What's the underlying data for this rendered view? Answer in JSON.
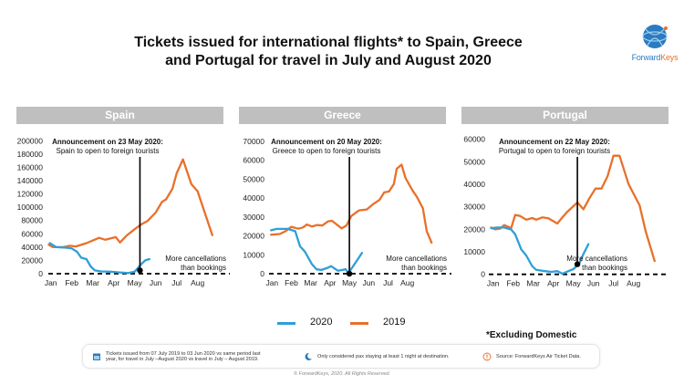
{
  "title": {
    "line1": "Tickets issued for international flights* to Spain, Greece",
    "line2": "and Portugal for travel in July and August 2020"
  },
  "logo": {
    "icon": "globe-icon",
    "text_part1": "Forward",
    "text_part2": "Keys"
  },
  "colors": {
    "series_2020": "#2e9fd8",
    "series_2019": "#e8702a",
    "panel_header_bg": "#bfbfbf"
  },
  "legend": [
    {
      "label": "2020",
      "color": "#2e9fd8"
    },
    {
      "label": "2019",
      "color": "#e8702a"
    }
  ],
  "footnote": "*Excluding Domestic",
  "notes": [
    {
      "icon": "calendar-icon",
      "line1": "Tickets issued from 07 July 2019 to 03 Jun 2020 vs same period last",
      "line2": "year, for travel in July –August 2020 vs travel in July – August 2019."
    },
    {
      "icon": "moon-icon",
      "line1": "Only considered pax staying at least 1 night at destination.",
      "line2": ""
    },
    {
      "icon": "warning-icon",
      "line1": "Source: ForwardKeys Air Ticket Data.",
      "line2": ""
    }
  ],
  "copyright": "© ForwardKeys, 2020. All Rights Reserved.",
  "chart_data": [
    {
      "type": "line",
      "title": "Spain",
      "xlabel": "",
      "ylabel": "",
      "x_tick_labels": [
        "Jan",
        "Feb",
        "Mar",
        "Apr",
        "May",
        "Jun",
        "Jul",
        "Aug"
      ],
      "x_unit": "months since Jan (0 = Jan)",
      "xlim": [
        -0.1,
        8.3
      ],
      "ylim": [
        0,
        200000
      ],
      "y_ticks": [
        0,
        20000,
        40000,
        60000,
        80000,
        100000,
        120000,
        140000,
        160000,
        180000,
        200000
      ],
      "grid": false,
      "zero_line": "dashed",
      "annotation": {
        "title": "Announcement on 23 May 2020:",
        "text": "Spain to open to foreign tourists",
        "x": 4.25,
        "marker_value": 5000
      },
      "note": [
        "More cancellations",
        "than bookings"
      ],
      "series": [
        {
          "name": "2020",
          "x": [
            -0.05,
            0.25,
            0.8,
            1.0,
            1.25,
            1.45,
            1.7,
            1.9,
            2.1,
            2.4,
            2.85,
            3.2,
            3.7,
            4.0,
            4.3,
            4.5,
            4.7
          ],
          "values": [
            46000,
            40000,
            39000,
            38000,
            33000,
            24000,
            22000,
            11000,
            5000,
            3500,
            3000,
            2000,
            1000,
            3000,
            14000,
            20000,
            22000
          ]
        },
        {
          "name": "2019",
          "x": [
            -0.1,
            0.1,
            0.6,
            0.9,
            1.2,
            1.7,
            2.3,
            2.6,
            3.1,
            3.3,
            3.6,
            4.0,
            4.3,
            4.6,
            5.0,
            5.3,
            5.5,
            5.8,
            6.0,
            6.3,
            6.7,
            7.0,
            7.2,
            7.7
          ],
          "values": [
            43500,
            40000,
            40000,
            42000,
            41000,
            46000,
            54000,
            51000,
            55000,
            47000,
            57000,
            67000,
            74000,
            79000,
            92000,
            108000,
            112000,
            128000,
            151000,
            172000,
            135000,
            124000,
            105000,
            58000
          ]
        }
      ]
    },
    {
      "type": "line",
      "title": "Greece",
      "xlabel": "",
      "ylabel": "",
      "x_tick_labels": [
        "Jan",
        "Feb",
        "Mar",
        "Apr",
        "May",
        "Jun",
        "Jul",
        "Aug"
      ],
      "x_unit": "months since Jan (0 = Jan)",
      "xlim": [
        -0.1,
        8.3
      ],
      "ylim": [
        0,
        70000
      ],
      "y_ticks": [
        0,
        10000,
        20000,
        30000,
        40000,
        50000,
        60000,
        70000
      ],
      "grid": false,
      "zero_line": "dashed",
      "annotation": {
        "title": "Announcement on 20 May 2020:",
        "text": "Greece to open to foreign tourists",
        "x": 4.0,
        "marker_value": 0
      },
      "note": [
        "More cancellations",
        "than bookings"
      ],
      "series": [
        {
          "name": "2020",
          "x": [
            -0.05,
            0.25,
            0.8,
            1.2,
            1.45,
            1.7,
            2.05,
            2.3,
            2.55,
            2.9,
            3.05,
            3.4,
            3.65,
            3.8,
            3.95,
            4.3,
            4.65
          ],
          "values": [
            23000,
            23700,
            23700,
            22500,
            14500,
            11700,
            5200,
            2300,
            2000,
            3200,
            4000,
            1600,
            2000,
            2400,
            300,
            5600,
            11000
          ]
        },
        {
          "name": "2019",
          "x": [
            -0.05,
            0.4,
            0.7,
            1.0,
            1.35,
            1.6,
            1.8,
            2.05,
            2.35,
            2.6,
            2.9,
            3.1,
            3.6,
            3.85,
            4.1,
            4.5,
            4.9,
            5.25,
            5.55,
            5.8,
            6.05,
            6.3,
            6.45,
            6.7,
            6.9,
            7.25,
            7.5,
            7.8,
            8.0,
            8.25
          ],
          "values": [
            20600,
            21000,
            22500,
            24800,
            23800,
            24500,
            26000,
            25000,
            25800,
            25500,
            27700,
            28000,
            24000,
            25500,
            30500,
            33500,
            34000,
            37000,
            39000,
            43000,
            43500,
            47500,
            55500,
            57700,
            50700,
            44300,
            40500,
            34600,
            22500,
            16400
          ]
        }
      ]
    },
    {
      "type": "line",
      "title": "Portugal",
      "xlabel": "",
      "ylabel": "",
      "x_tick_labels": [
        "Jan",
        "Feb",
        "Mar",
        "Apr",
        "May",
        "Jun",
        "Jul",
        "Aug"
      ],
      "x_unit": "months since Jan (0 = Jan)",
      "xlim": [
        -0.1,
        8.3
      ],
      "ylim": [
        0,
        60000
      ],
      "y_ticks": [
        0,
        10000,
        20000,
        30000,
        40000,
        50000,
        60000
      ],
      "grid": false,
      "zero_line": "dashed",
      "annotation": {
        "title": "Announcement on 22 May 2020:",
        "text": "Portugal to open to foreign tourists",
        "x": 4.2,
        "marker_value": 4500
      },
      "note": [
        "More cancellations",
        "than bookings"
      ],
      "series": [
        {
          "name": "2020",
          "x": [
            -0.1,
            0.2,
            0.55,
            0.9,
            1.1,
            1.4,
            1.65,
            1.95,
            2.15,
            2.45,
            2.9,
            3.2,
            3.45,
            3.75,
            4.0,
            4.3,
            4.5,
            4.75
          ],
          "values": [
            20500,
            20800,
            20800,
            19900,
            17800,
            11100,
            8400,
            3600,
            2000,
            1600,
            1100,
            1400,
            300,
            1400,
            2300,
            5000,
            9000,
            13400
          ]
        },
        {
          "name": "2019",
          "x": [
            -0.1,
            0.1,
            0.35,
            0.55,
            0.9,
            1.1,
            1.35,
            1.65,
            1.95,
            2.15,
            2.45,
            2.75,
            3.2,
            3.45,
            3.7,
            4.05,
            4.2,
            4.5,
            4.8,
            5.1,
            5.4,
            5.7,
            6.0,
            6.3,
            6.75,
            7.3,
            7.6,
            8.05
          ],
          "values": [
            20800,
            20000,
            20300,
            21900,
            20500,
            26400,
            25900,
            24300,
            25000,
            24300,
            25300,
            24900,
            22600,
            25300,
            27800,
            30700,
            32000,
            28900,
            33800,
            38100,
            38100,
            43500,
            52700,
            52700,
            40100,
            30700,
            19200,
            5900
          ]
        }
      ]
    }
  ]
}
